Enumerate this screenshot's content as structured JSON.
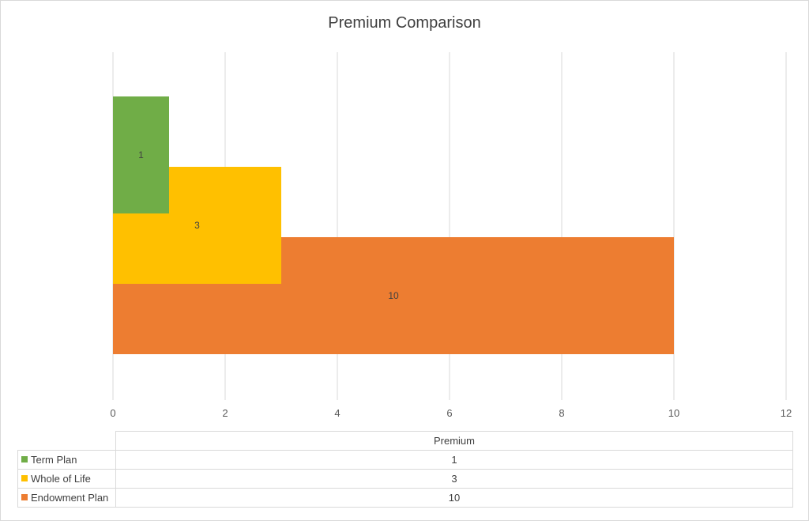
{
  "chart_data": {
    "type": "bar",
    "orientation": "horizontal",
    "title": "Premium Comparison",
    "series_name": "Premium",
    "categories": [
      "Term Plan",
      "Whole of Life",
      "Endowment Plan"
    ],
    "values": [
      1,
      3,
      10
    ],
    "colors": [
      "#70ad47",
      "#ffc000",
      "#ed7d31"
    ],
    "xlim": [
      0,
      12
    ],
    "xticks": [
      0,
      2,
      4,
      6,
      8,
      10,
      12
    ],
    "grid": true,
    "legend": "data-table"
  }
}
